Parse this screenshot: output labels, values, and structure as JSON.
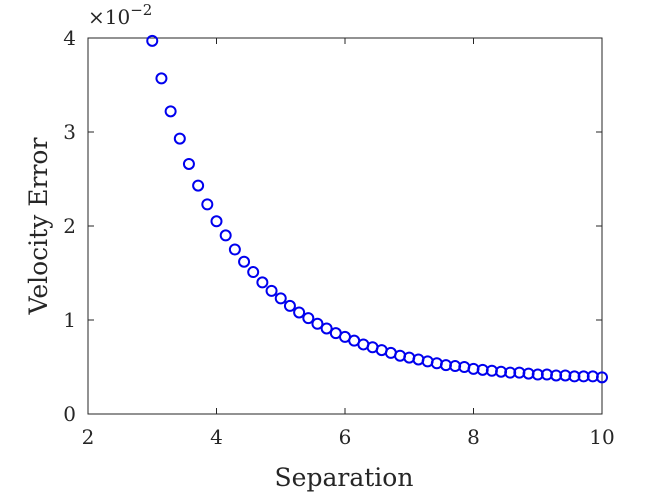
{
  "chart_data": {
    "type": "scatter",
    "xlabel": "Separation",
    "ylabel": "Velocity Error",
    "xlim": [
      2,
      10
    ],
    "ylim": [
      0,
      4
    ],
    "xticks": [
      "2",
      "4",
      "6",
      "8",
      "10"
    ],
    "yticks": [
      "0",
      "1",
      "2",
      "3",
      "4"
    ],
    "y_multiplier": {
      "base": "×10",
      "exponent": "−2"
    },
    "marker": "circle-open",
    "marker_color": "#0000ee",
    "grid": false,
    "series": [
      {
        "x": [
          3.0,
          3.143,
          3.286,
          3.429,
          3.571,
          3.714,
          3.857,
          4.0,
          4.143,
          4.286,
          4.429,
          4.571,
          4.714,
          4.857,
          5.0,
          5.143,
          5.286,
          5.429,
          5.571,
          5.714,
          5.857,
          6.0,
          6.143,
          6.286,
          6.429,
          6.571,
          6.714,
          6.857,
          7.0,
          7.143,
          7.286,
          7.429,
          7.571,
          7.714,
          7.857,
          8.0,
          8.143,
          8.286,
          8.429,
          8.571,
          8.714,
          8.857,
          9.0,
          9.143,
          9.286,
          9.429,
          9.571,
          9.714,
          9.857,
          10.0
        ],
        "y": [
          3.97,
          3.57,
          3.22,
          2.93,
          2.66,
          2.43,
          2.23,
          2.05,
          1.9,
          1.75,
          1.62,
          1.51,
          1.4,
          1.31,
          1.23,
          1.15,
          1.08,
          1.02,
          0.96,
          0.91,
          0.86,
          0.82,
          0.78,
          0.74,
          0.71,
          0.68,
          0.65,
          0.62,
          0.6,
          0.58,
          0.56,
          0.54,
          0.52,
          0.51,
          0.5,
          0.48,
          0.47,
          0.46,
          0.45,
          0.44,
          0.44,
          0.43,
          0.42,
          0.42,
          0.41,
          0.41,
          0.4,
          0.4,
          0.4,
          0.39
        ]
      }
    ]
  }
}
